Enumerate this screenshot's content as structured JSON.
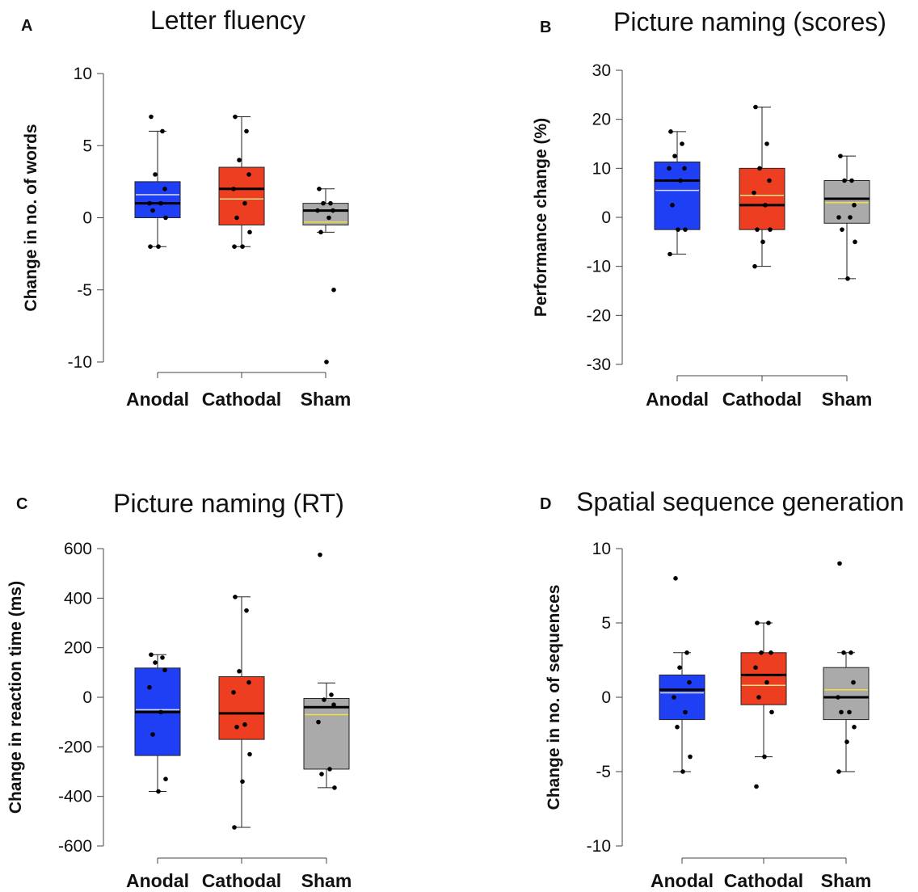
{
  "chart_data": [
    {
      "letter": "A",
      "type": "box",
      "title": "Letter fluency",
      "ylabel": "Change in no. of words",
      "ylim": [
        -10,
        10
      ],
      "yticks": [
        -10,
        -5,
        0,
        5,
        10
      ],
      "categories": [
        "Anodal",
        "Cathodal",
        "Sham"
      ],
      "boxes": [
        {
          "name": "Anodal",
          "color": "#1f3ff5",
          "meanColor": "#dddddd",
          "q1": 0,
          "q3": 2.5,
          "median": 1,
          "mean": 1.6,
          "whiskerLow": -2,
          "whiskerHigh": 6,
          "points": [
            7,
            6,
            3,
            2,
            1,
            1,
            0.5,
            0,
            -2,
            -2
          ]
        },
        {
          "name": "Cathodal",
          "color": "#ee3e22",
          "meanColor": "#f0e68c",
          "q1": -0.5,
          "q3": 3.5,
          "median": 2,
          "mean": 1.3,
          "whiskerLow": -2,
          "whiskerHigh": 7,
          "points": [
            7,
            6,
            4,
            3,
            2,
            1,
            0,
            -1,
            -2,
            -2
          ]
        },
        {
          "name": "Sham",
          "color": "#aaaaaa",
          "meanColor": "#f0e040",
          "q1": -0.5,
          "q3": 1,
          "median": 0.5,
          "mean": -0.3,
          "whiskerLow": -1,
          "whiskerHigh": 2,
          "points": [
            2,
            1,
            1,
            0.5,
            0.5,
            0,
            -1,
            -5,
            -10
          ]
        }
      ]
    },
    {
      "letter": "B",
      "type": "box",
      "title": "Picture naming (scores)",
      "ylabel": "Performance change (%)",
      "ylim": [
        -30,
        30
      ],
      "yticks": [
        -30,
        -20,
        -10,
        0,
        10,
        20,
        30
      ],
      "categories": [
        "Anodal",
        "Cathodal",
        "Sham"
      ],
      "boxes": [
        {
          "name": "Anodal",
          "color": "#1f3ff5",
          "meanColor": "#dddddd",
          "q1": -2.5,
          "q3": 11.3,
          "median": 7.5,
          "mean": 5.5,
          "whiskerLow": -7.5,
          "whiskerHigh": 17.5,
          "points": [
            17.5,
            15,
            12.5,
            10,
            10,
            7.5,
            2.5,
            -2.5,
            -2.5,
            -7.5
          ]
        },
        {
          "name": "Cathodal",
          "color": "#ee3e22",
          "meanColor": "#f0e68c",
          "q1": -2.5,
          "q3": 10,
          "median": 2.5,
          "mean": 4.5,
          "whiskerLow": -10,
          "whiskerHigh": 22.5,
          "points": [
            22.5,
            15,
            10,
            7.5,
            5,
            2.5,
            -2.5,
            -2.5,
            -5,
            -10
          ]
        },
        {
          "name": "Sham",
          "color": "#aaaaaa",
          "meanColor": "#f0e040",
          "q1": -1.2,
          "q3": 7.5,
          "median": 3.8,
          "mean": 3,
          "whiskerLow": -12.5,
          "whiskerHigh": 12.5,
          "points": [
            12.5,
            7.5,
            7.5,
            2.5,
            0,
            0,
            -2.5,
            -5,
            -12.5
          ]
        }
      ]
    },
    {
      "letter": "C",
      "type": "box",
      "title": "Picture naming (RT)",
      "ylabel": "Change in reaction time (ms)",
      "ylim": [
        -600,
        600
      ],
      "yticks": [
        -600,
        -400,
        -200,
        0,
        200,
        400,
        600
      ],
      "categories": [
        "Anodal",
        "Cathodal",
        "Sham"
      ],
      "boxes": [
        {
          "name": "Anodal",
          "color": "#1f3ff5",
          "meanColor": "#dddddd",
          "q1": -235,
          "q3": 118,
          "median": -60,
          "mean": -50,
          "whiskerLow": -380,
          "whiskerHigh": 172,
          "points": [
            172,
            160,
            140,
            110,
            40,
            -60,
            -150,
            -330,
            -380
          ]
        },
        {
          "name": "Cathodal",
          "color": "#ee3e22",
          "meanColor": "#f0e68c",
          "q1": -170,
          "q3": 83,
          "median": -65,
          "mean": -65,
          "whiskerLow": -525,
          "whiskerHigh": 405,
          "points": [
            405,
            350,
            105,
            60,
            20,
            -110,
            -120,
            -230,
            -340,
            -525
          ]
        },
        {
          "name": "Sham",
          "color": "#aaaaaa",
          "meanColor": "#f0e040",
          "q1": -290,
          "q3": -5,
          "median": -40,
          "mean": -70,
          "whiskerLow": -365,
          "whiskerHigh": 58,
          "points": [
            575,
            10,
            -10,
            -30,
            -100,
            -290,
            -310,
            -365
          ]
        }
      ]
    },
    {
      "letter": "D",
      "type": "box",
      "title": "Spatial sequence generation",
      "ylabel": "Change in no. of sequences",
      "ylim": [
        -10,
        10
      ],
      "yticks": [
        -10,
        -5,
        0,
        5,
        10
      ],
      "categories": [
        "Anodal",
        "Cathodal",
        "Sham"
      ],
      "boxes": [
        {
          "name": "Anodal",
          "color": "#1f3ff5",
          "meanColor": "#dddddd",
          "q1": -1.5,
          "q3": 1.5,
          "median": 0.5,
          "mean": 0.3,
          "whiskerLow": -5,
          "whiskerHigh": 3,
          "points": [
            8,
            3,
            2,
            1,
            0,
            -1,
            -2,
            -4,
            -5
          ]
        },
        {
          "name": "Cathodal",
          "color": "#ee3e22",
          "meanColor": "#f0e68c",
          "q1": -0.5,
          "q3": 3,
          "median": 1.5,
          "mean": 0.8,
          "whiskerLow": -4,
          "whiskerHigh": 5,
          "points": [
            5,
            5,
            3,
            3,
            2,
            1,
            0,
            -1,
            -4,
            -6
          ]
        },
        {
          "name": "Sham",
          "color": "#aaaaaa",
          "meanColor": "#f0e040",
          "q1": -1.5,
          "q3": 2,
          "median": 0,
          "mean": 0.5,
          "whiskerLow": -5,
          "whiskerHigh": 3,
          "points": [
            9,
            3,
            3,
            1,
            0,
            -1,
            -1,
            -2,
            -3,
            -5
          ]
        }
      ]
    }
  ]
}
